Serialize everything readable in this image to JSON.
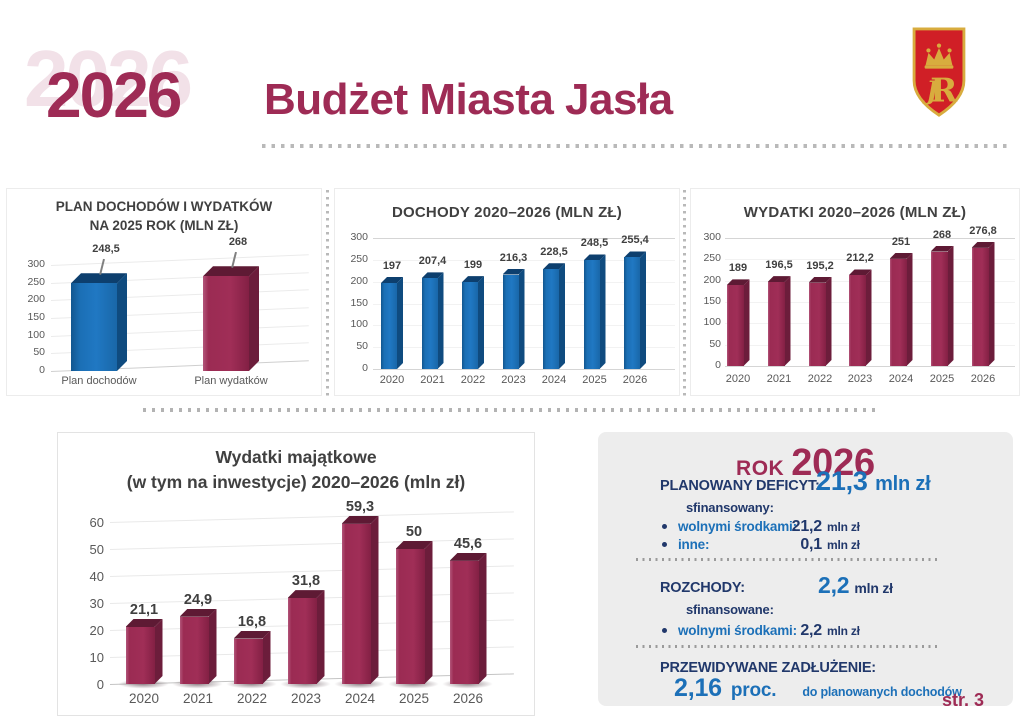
{
  "header": {
    "ghost_year": "2026",
    "year": "2026",
    "title": "Budżet Miasta Jasła"
  },
  "colors": {
    "maroon": "#9e2b55",
    "maroon_light": "#f2e1e8",
    "bar_blue": "#1b6fb5",
    "bar_maroon": "#9b2b53",
    "navy": "#21386b",
    "accent_blue": "#1c70b8",
    "panel_gray": "#ededed",
    "chart_text": "#404040",
    "axis_text": "#595959",
    "crest_red": "#d01f26",
    "crest_gold": "#d8ac3e"
  },
  "chart_data": [
    {
      "id": "plan",
      "type": "bar",
      "style": "3d-column",
      "title_lines": [
        "PLAN DOCHODÓW I WYDATKÓW",
        "NA 2025 ROK (MLN ZŁ)"
      ],
      "categories": [
        "Plan dochodów",
        "Plan wydatków"
      ],
      "values": [
        248.5,
        268
      ],
      "labels": [
        "248,5",
        "268"
      ],
      "bar_colors": [
        "blue",
        "maroon"
      ],
      "ylim": [
        0,
        300
      ],
      "yticks": [
        300,
        250,
        200,
        150,
        100,
        50,
        0
      ],
      "grid": true,
      "legend": "none"
    },
    {
      "id": "dochody",
      "type": "bar",
      "style": "3d-column",
      "title": "DOCHODY 2020–2026 (MLN ZŁ)",
      "categories": [
        "2020",
        "2021",
        "2022",
        "2023",
        "2024",
        "2025",
        "2026"
      ],
      "values": [
        197,
        207.4,
        199,
        216.3,
        228.5,
        248.5,
        255.4
      ],
      "labels": [
        "197",
        "207,4",
        "199",
        "216,3",
        "228,5",
        "248,5",
        "255,4"
      ],
      "color": "blue",
      "ylim": [
        0,
        300
      ],
      "yticks": [
        300,
        250,
        200,
        150,
        100,
        50,
        0
      ],
      "grid": true,
      "legend": "none"
    },
    {
      "id": "wydatki",
      "type": "bar",
      "style": "3d-column",
      "title": "WYDATKI 2020–2026 (MLN ZŁ)",
      "categories": [
        "2020",
        "2021",
        "2022",
        "2023",
        "2024",
        "2025",
        "2026"
      ],
      "values": [
        189,
        196.5,
        195.2,
        212.2,
        251,
        268,
        276.8
      ],
      "labels": [
        "189",
        "196,5",
        "195,2",
        "212,2",
        "251",
        "268",
        "276,8"
      ],
      "color": "maroon",
      "ylim": [
        0,
        300
      ],
      "yticks": [
        300,
        250,
        200,
        150,
        100,
        50,
        0
      ],
      "grid": true,
      "legend": "none"
    },
    {
      "id": "majatkowe",
      "type": "bar",
      "style": "3d-column",
      "title_lines": [
        "Wydatki majątkowe",
        "(w tym na inwestycje) 2020–2026 (mln zł)"
      ],
      "categories": [
        "2020",
        "2021",
        "2022",
        "2023",
        "2024",
        "2025",
        "2026"
      ],
      "values": [
        21.1,
        24.9,
        16.8,
        31.8,
        59.3,
        50,
        45.6
      ],
      "labels": [
        "21,1",
        "24,9",
        "16,8",
        "31,8",
        "59,3",
        "50",
        "45,6"
      ],
      "color": "maroon",
      "ylim": [
        0,
        60
      ],
      "yticks": [
        60,
        50,
        40,
        30,
        20,
        10,
        0
      ],
      "grid": true,
      "legend": "none"
    }
  ],
  "panel": {
    "title_small": "ROK",
    "title_year": "2026",
    "sections": [
      {
        "label": "PLANOWANY DEFICYT:",
        "value": "21,3",
        "unit": "mln zł",
        "sub": "sfinansowany:",
        "bullets": [
          {
            "label": "wolnymi środkami:",
            "value": "21,2",
            "unit": "mln zł"
          },
          {
            "label": "inne:",
            "value": "0,1",
            "unit": "mln zł"
          }
        ]
      },
      {
        "label": "ROZCHODY:",
        "value": "2,2",
        "unit": "mln zł",
        "sub": "sfinansowane:",
        "bullets": [
          {
            "label": "wolnymi środkami:",
            "value": "2,2",
            "unit": "mln zł"
          }
        ]
      },
      {
        "label": "PRZEWIDYWANE ZADŁUŻENIE:",
        "value": "2,16",
        "unit": "proc.",
        "note": "do planowanych dochodów"
      }
    ]
  },
  "page_label": "str. 3"
}
